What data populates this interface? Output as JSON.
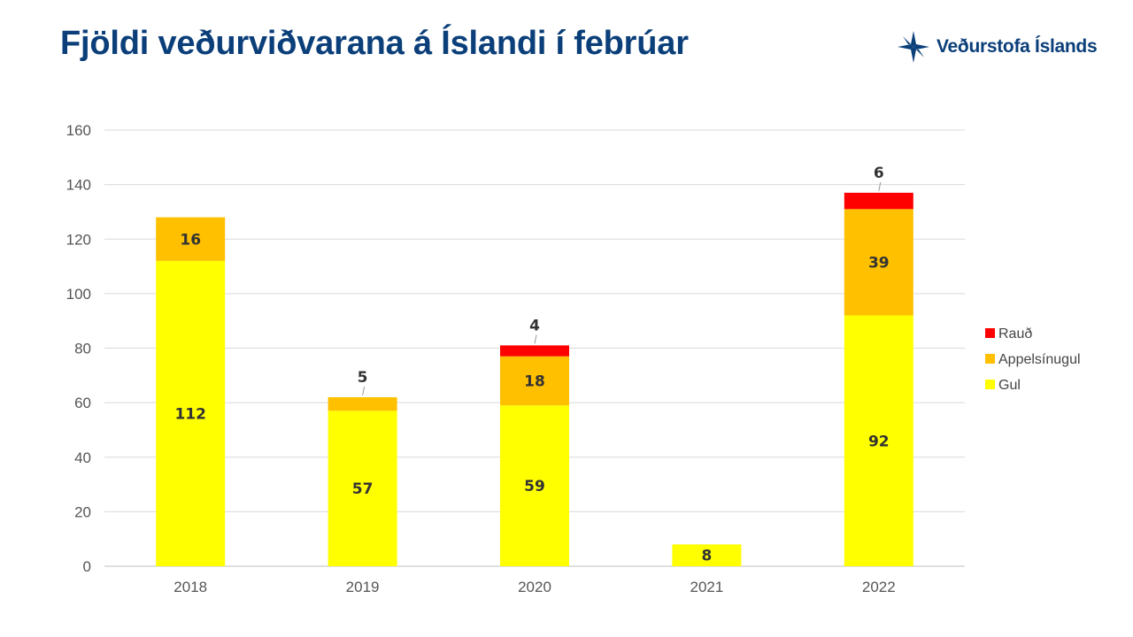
{
  "header": {
    "title": "Fjöldi veðurviðvarana á Íslandi í febrúar",
    "logo_text": "Veðurstofa Íslands",
    "logo_color": "#0b3f7a"
  },
  "chart_data": {
    "type": "bar",
    "stacked": true,
    "title": "Fjöldi veðurviðvarana á Íslandi í febrúar",
    "xlabel": "",
    "ylabel": "",
    "categories": [
      "2018",
      "2019",
      "2020",
      "2021",
      "2022"
    ],
    "series": [
      {
        "name": "Gul",
        "color": "#ffff00",
        "values": [
          112,
          57,
          59,
          8,
          92
        ]
      },
      {
        "name": "Appelsínugul",
        "color": "#ffc000",
        "values": [
          16,
          5,
          18,
          0,
          39
        ]
      },
      {
        "name": "Rauð",
        "color": "#ff0000",
        "values": [
          0,
          0,
          4,
          0,
          6
        ]
      }
    ],
    "ylim": [
      0,
      160
    ],
    "yticks": [
      0,
      20,
      40,
      60,
      80,
      100,
      120,
      140,
      160
    ],
    "grid": true,
    "legend_position": "right"
  }
}
